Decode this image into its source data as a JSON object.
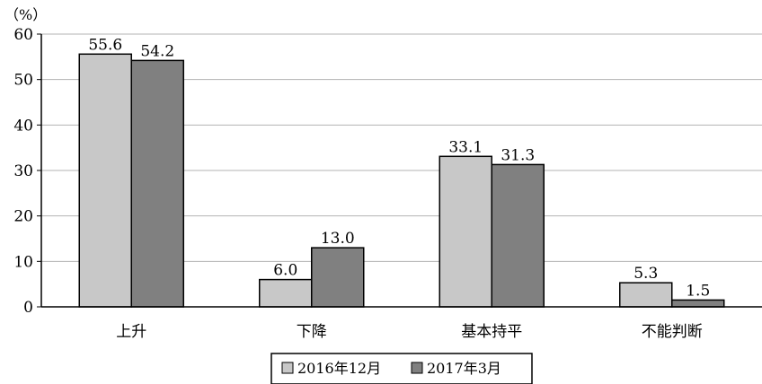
{
  "chart_data": {
    "type": "bar",
    "unit_label": "（%）",
    "categories": [
      "上升",
      "下降",
      "基本持平",
      "不能判断"
    ],
    "series": [
      {
        "name": "2016年12月",
        "values": [
          55.6,
          6.0,
          33.1,
          5.3
        ],
        "color": "#c8c8c8"
      },
      {
        "name": "2017年3月",
        "values": [
          54.2,
          13.0,
          31.3,
          1.5
        ],
        "color": "#808080"
      }
    ],
    "value_labels": [
      [
        "55.6",
        "6.0",
        "33.1",
        "5.3"
      ],
      [
        "54.2",
        "13.0",
        "31.3",
        "1.5"
      ]
    ],
    "ylim": [
      0,
      60
    ],
    "yticks": [
      0,
      10,
      20,
      30,
      40,
      50,
      60
    ],
    "grid": true,
    "legend_position": "bottom-center",
    "xlabel": "",
    "ylabel": ""
  }
}
